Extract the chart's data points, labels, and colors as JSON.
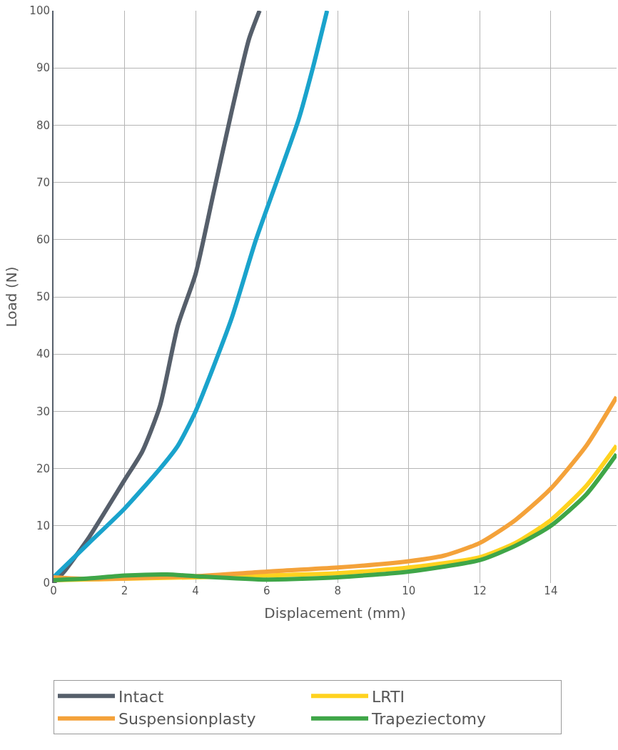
{
  "chart_data": {
    "type": "line",
    "xlabel": "Displacement (mm)",
    "ylabel": "Load (N)",
    "xlim": [
      0,
      15.85
    ],
    "xticks": [
      0,
      2,
      4,
      6,
      8,
      10,
      12,
      14
    ],
    "ylim": [
      0,
      100
    ],
    "yticks": [
      0,
      10,
      20,
      30,
      40,
      50,
      60,
      70,
      80,
      90,
      100
    ],
    "grid": true,
    "legend": "bottom",
    "marker": "none",
    "line_style": "solid",
    "series": [
      {
        "name": "Intact",
        "color": "#565f6b",
        "x": [
          0,
          0.3,
          1,
          2,
          2.5,
          3,
          3.5,
          4,
          4.5,
          5,
          5.5,
          5.8
        ],
        "values": [
          0,
          2,
          8,
          18,
          23,
          31,
          45,
          54,
          68,
          82,
          95,
          100
        ]
      },
      {
        "color": "#1aa3cc",
        "x": [
          0,
          1,
          2,
          3,
          3.5,
          4,
          5,
          5.7,
          6.9,
          7.3,
          7.7
        ],
        "values": [
          1,
          7,
          13,
          20,
          24,
          30,
          46,
          60,
          81,
          90,
          100
        ]
      },
      {
        "name": "LRTI",
        "color": "#ffd21f",
        "x": [
          0,
          4,
          8,
          10,
          12,
          13,
          14,
          15,
          15.85
        ],
        "values": [
          0.5,
          1,
          1.7,
          2.7,
          4.5,
          7,
          11,
          17,
          24
        ]
      },
      {
        "name": "Suspensionplasty",
        "color": "#f4a23a",
        "x": [
          0,
          1,
          4,
          6,
          8,
          10,
          11,
          12,
          13,
          14,
          15,
          15.85
        ],
        "values": [
          1,
          0.7,
          1.2,
          2,
          2.7,
          3.8,
          4.8,
          7,
          11,
          16.5,
          24,
          32.5
        ]
      },
      {
        "name": "Trapeziectomy",
        "color": "#3fa648",
        "x": [
          0,
          1,
          2,
          3.2,
          4,
          6,
          8,
          10,
          12,
          13,
          14,
          15,
          15.85
        ],
        "values": [
          0.5,
          0.8,
          1.3,
          1.5,
          1.2,
          0.6,
          1,
          2,
          4,
          6.5,
          10,
          15.5,
          22.5
        ]
      }
    ]
  }
}
